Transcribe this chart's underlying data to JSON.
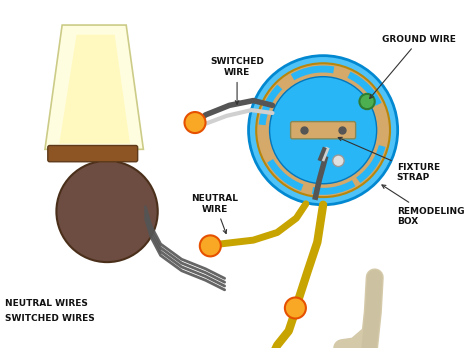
{
  "bg": "#ffffff",
  "labels": {
    "ground_wire": "GROUND WIRE",
    "switched_wire": "SWITCHED\nWIRE",
    "neutral_wire": "NEUTRAL\nWIRE",
    "fixture_strap": "FIXTURE\nSTRAP",
    "remodeling_box": "REMODELING\nBOX",
    "neutral_wires": "NEUTRAL WIRES",
    "switched_wires": "SWITCHED WIRES"
  },
  "lamp_shade_color": "#fffde0",
  "lamp_base_brown": "#8d5524",
  "lamp_mount_brown": "#6d4c41",
  "junction_blue": "#4fc3f7",
  "junction_tan": "#d4a96a",
  "junction_inner_blue": "#29b6f6",
  "wire_dark": "#555555",
  "wire_gold": "#c8a400",
  "wire_connector": "#f9a825",
  "wire_white": "#d0d0d0",
  "ground_green": "#4caf50",
  "conduit_color": "#d4c9a8"
}
